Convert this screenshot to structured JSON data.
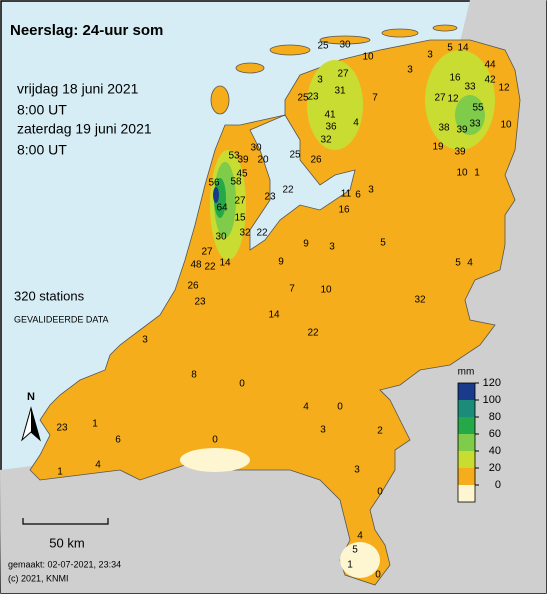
{
  "title": "Neerslag: 24-uur som",
  "period": [
    "vrijdag 18 juni 2021",
    "8:00 UT",
    "zaterdag 19 juni 2021",
    "8:00 UT"
  ],
  "stations_count": "320 stations",
  "data_note": "GEVALIDEERDE DATA",
  "north": "N",
  "scale_label": "50 km",
  "footer": [
    "gemaakt: 02-07-2021, 23:34",
    "(c) 2021, KNMI"
  ],
  "legend": {
    "unit": "mm",
    "ticks": [
      0,
      20,
      40,
      60,
      80,
      100,
      120
    ],
    "colors": [
      "#fdf6d0",
      "#f5ad1b",
      "#c9dc32",
      "#7fcb4a",
      "#25a848",
      "#1c8c7a",
      "#1a3a8c"
    ]
  },
  "stations": [
    25,
    30,
    14,
    5,
    3,
    10,
    44,
    27,
    3,
    16,
    31,
    7,
    3,
    42,
    33,
    25,
    23,
    12,
    27,
    12,
    55,
    41,
    36,
    32,
    38,
    39,
    33,
    10,
    4,
    19,
    39,
    30,
    53,
    45,
    39,
    56,
    58,
    20,
    25,
    26,
    10,
    1,
    27,
    23,
    22,
    64,
    15,
    32,
    22,
    30,
    11,
    6,
    3,
    16,
    27,
    48,
    22,
    14,
    26,
    23,
    9,
    9,
    3,
    5,
    5,
    4,
    7,
    10,
    32,
    14,
    22,
    3,
    8,
    0,
    4,
    0,
    23,
    1,
    6,
    0,
    3,
    2,
    3,
    4,
    1,
    0,
    4,
    5,
    0,
    1
  ]
}
